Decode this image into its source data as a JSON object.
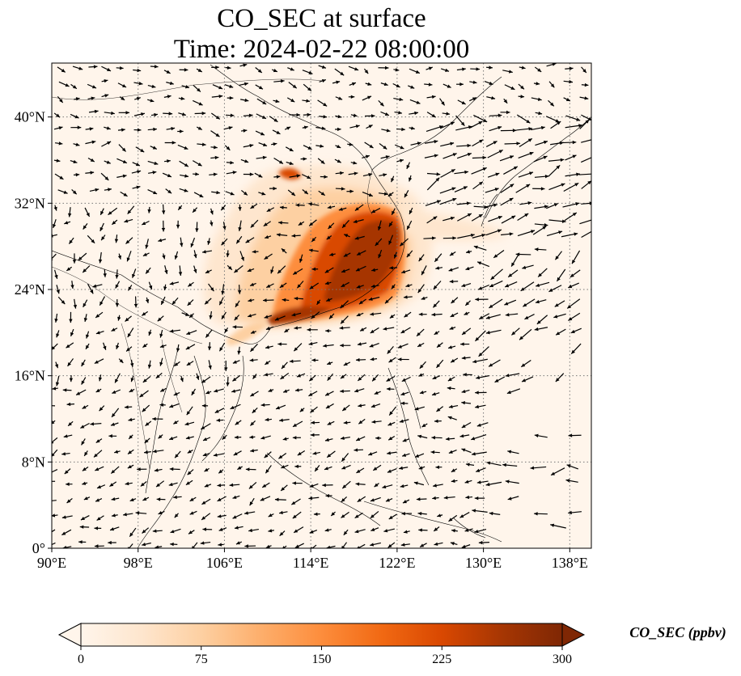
{
  "title_line1": "CO_SEC at surface",
  "title_line2": "Time: 2024-02-22 08:00:00",
  "map": {
    "lon_range": [
      90,
      140
    ],
    "lat_range": [
      0,
      45
    ],
    "lon_ticks": [
      "90°E",
      "98°E",
      "106°E",
      "114°E",
      "122°E",
      "130°E",
      "138°E"
    ],
    "lat_ticks": [
      "0°",
      "8°N",
      "16°N",
      "24°N",
      "32°N",
      "40°N"
    ],
    "lon_tick_values": [
      90,
      98,
      106,
      114,
      122,
      130,
      138
    ],
    "lat_tick_values": [
      0,
      8,
      16,
      24,
      32,
      40
    ],
    "background_color": "#fff5eb",
    "gridlines": "dotted"
  },
  "colorbar": {
    "title": "CO_SEC (ppbv)",
    "tick_labels": [
      "0",
      "75",
      "150",
      "225",
      "300"
    ],
    "tick_values": [
      0,
      75,
      150,
      225,
      300
    ],
    "range": [
      0,
      300
    ],
    "colormap": "OrRd",
    "colors": [
      "#fff5eb",
      "#fee6ce",
      "#fdd0a2",
      "#fdae6b",
      "#fd8d3c",
      "#f16913",
      "#d94801",
      "#a63603",
      "#7f2704"
    ],
    "extend": "both"
  },
  "plume": {
    "description_level": "high concentrations over eastern China",
    "max_region_lon": [
      110,
      123
    ],
    "max_region_lat": [
      19,
      32
    ]
  }
}
